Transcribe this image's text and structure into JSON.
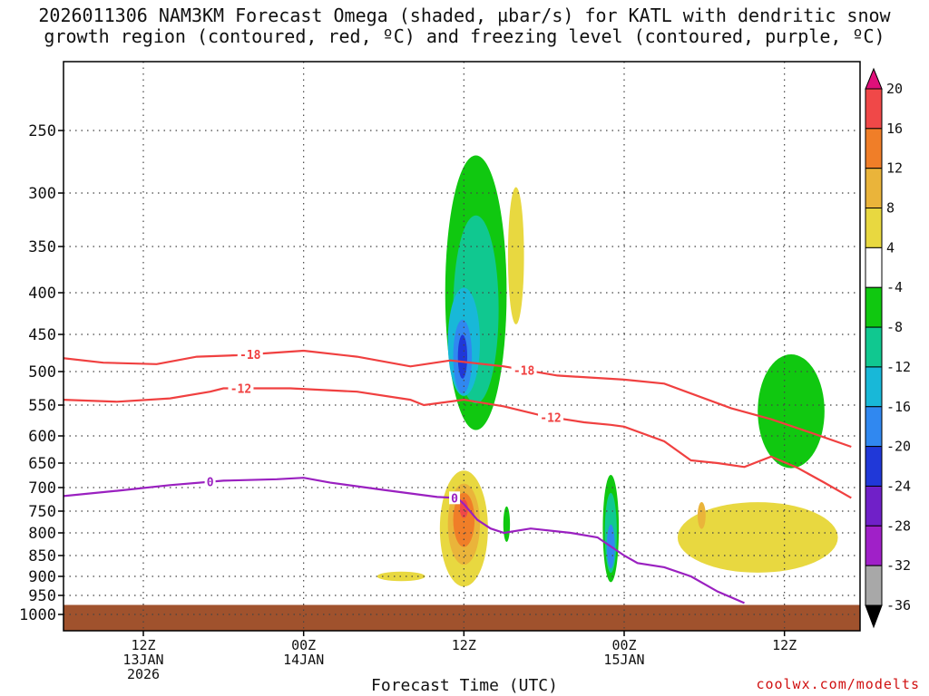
{
  "title_line1": "2026011306 NAM3KM Forecast Omega (shaded, µbar/s) for KATL with dendritic snow",
  "title_line2": "growth region (contoured, red, ºC) and freezing level (contoured, purple, ºC)",
  "xlabel": "Forecast Time (UTC)",
  "credit": "coolwx.com/modelts",
  "chart_data": {
    "type": "heatmap",
    "title": "2026011306 NAM3KM Forecast Omega (shaded, µbar/s) for KATL with dendritic snow growth region (contoured, red, ºC) and freezing level (contoured, purple, ºC)",
    "xlabel": "Forecast Time (UTC)",
    "ylabel": "",
    "x_unit": "forecast hours from 2026-01-13 06Z",
    "xlim": [
      0,
      59
    ],
    "y_levels": [
      250,
      300,
      350,
      400,
      450,
      500,
      550,
      600,
      650,
      700,
      750,
      800,
      850,
      900,
      950,
      1000
    ],
    "y_tick_labels": [
      "250",
      "300",
      "350",
      "400",
      "450",
      "500",
      "550",
      "600",
      "650",
      "700",
      "750",
      "800",
      "850",
      "900",
      "950",
      "1000"
    ],
    "x_ticks": [
      {
        "hour": 6,
        "lines": [
          "12Z",
          "13JAN",
          "2026"
        ]
      },
      {
        "hour": 18,
        "lines": [
          "00Z",
          "14JAN"
        ]
      },
      {
        "hour": 30,
        "lines": [
          "12Z"
        ]
      },
      {
        "hour": 42,
        "lines": [
          "00Z",
          "15JAN"
        ]
      },
      {
        "hour": 54,
        "lines": [
          "12Z"
        ]
      }
    ],
    "grid": true,
    "colorbar": {
      "labels": [
        "20",
        "16",
        "12",
        "8",
        "4",
        "-4",
        "-8",
        "-12",
        "-16",
        "-20",
        "-24",
        "-28",
        "-32",
        "-36"
      ],
      "colors": [
        "#e0107a",
        "#f04848",
        "#f07e28",
        "#eab43a",
        "#e8d840",
        "#ffffff",
        "#10c810",
        "#10c890",
        "#18b8d8",
        "#3088f0",
        "#2038d8",
        "#7020c8",
        "#a020c8",
        "#a8a8a8",
        "#000000"
      ]
    },
    "contours": [
      {
        "name": "-18",
        "color": "#f04040",
        "points": [
          [
            0,
            482
          ],
          [
            3,
            488
          ],
          [
            7,
            490
          ],
          [
            10,
            480
          ],
          [
            13,
            478
          ],
          [
            18,
            472
          ],
          [
            22,
            480
          ],
          [
            26,
            493
          ],
          [
            29,
            485
          ],
          [
            33,
            493
          ],
          [
            37,
            506
          ],
          [
            42,
            512
          ],
          [
            45,
            518
          ],
          [
            50,
            555
          ],
          [
            53,
            573
          ],
          [
            56,
            595
          ],
          [
            59,
            620
          ]
        ],
        "labels": [
          [
            14,
            "-18"
          ],
          [
            34.5,
            "-18"
          ]
        ]
      },
      {
        "name": "-12",
        "color": "#f04040",
        "points": [
          [
            0,
            542
          ],
          [
            4,
            545
          ],
          [
            8,
            540
          ],
          [
            11,
            530
          ],
          [
            12,
            525
          ],
          [
            17,
            525
          ],
          [
            22,
            530
          ],
          [
            26,
            542
          ],
          [
            27,
            550
          ],
          [
            30,
            542
          ],
          [
            33,
            552
          ],
          [
            36,
            568
          ],
          [
            39,
            578
          ],
          [
            41,
            582
          ],
          [
            42,
            585
          ],
          [
            45,
            610
          ],
          [
            47,
            645
          ],
          [
            49,
            650
          ],
          [
            51,
            658
          ],
          [
            53,
            638
          ],
          [
            55,
            660
          ],
          [
            57,
            690
          ],
          [
            59,
            722
          ]
        ],
        "labels": [
          [
            13.3,
            "-12"
          ],
          [
            36.5,
            "-12"
          ]
        ]
      },
      {
        "name": "0",
        "color": "#9a20c0",
        "points": [
          [
            0,
            718
          ],
          [
            4,
            707
          ],
          [
            8,
            695
          ],
          [
            12,
            686
          ],
          [
            16,
            683
          ],
          [
            18,
            680
          ],
          [
            20,
            690
          ],
          [
            24,
            705
          ],
          [
            28,
            720
          ],
          [
            29.5,
            722
          ],
          [
            30,
            735
          ],
          [
            31,
            770
          ],
          [
            32,
            790
          ],
          [
            33,
            800
          ],
          [
            35,
            790
          ],
          [
            38,
            800
          ],
          [
            40,
            810
          ],
          [
            42,
            850
          ],
          [
            43,
            868
          ],
          [
            45,
            878
          ],
          [
            47,
            900
          ],
          [
            49,
            940
          ],
          [
            51,
            970
          ]
        ],
        "labels": [
          [
            11,
            "0"
          ],
          [
            29.3,
            "0"
          ]
        ]
      }
    ],
    "shaded_regions": [
      {
        "range": "-8 to -4",
        "color": "#10c810",
        "ellipse": [
          30.9,
          400,
          2.3,
          150
        ]
      },
      {
        "range": "-12 to -8",
        "color": "#10c890",
        "ellipse": [
          30.9,
          420,
          1.7,
          110
        ]
      },
      {
        "range": "-16 to -12",
        "color": "#18b8d8",
        "ellipse": [
          30,
          460,
          1.2,
          70
        ]
      },
      {
        "range": "-20 to -16",
        "color": "#3088f0",
        "ellipse": [
          29.9,
          480,
          0.7,
          50
        ]
      },
      {
        "range": "-24 to -20",
        "color": "#2038d8",
        "ellipse": [
          29.9,
          480,
          0.35,
          30
        ]
      },
      {
        "range": "4 to 8",
        "color": "#e8d840",
        "ellipse": [
          30,
          790,
          1.8,
          130
        ]
      },
      {
        "range": "8 to 12",
        "color": "#eab43a",
        "ellipse": [
          30,
          780,
          1.2,
          90
        ]
      },
      {
        "range": "12 to 16",
        "color": "#f07e28",
        "ellipse": [
          30,
          770,
          0.8,
          60
        ]
      },
      {
        "range": "16 to 20",
        "color": "#f04848",
        "ellipse": [
          30,
          745,
          0.3,
          20
        ]
      },
      {
        "range": "4 to 8",
        "color": "#e8d840",
        "ellipse": [
          33.9,
          360,
          0.6,
          70
        ]
      },
      {
        "range": "-8 to -4",
        "color": "#10c810",
        "ellipse": [
          41,
          790,
          0.6,
          120
        ]
      },
      {
        "range": "-12 to -8",
        "color": "#10c890",
        "ellipse": [
          41,
          800,
          0.45,
          90
        ]
      },
      {
        "range": "-20 to -16",
        "color": "#3088f0",
        "ellipse": [
          41,
          830,
          0.3,
          50
        ]
      },
      {
        "range": "4 to 8",
        "color": "#e8d840",
        "ellipse": [
          52,
          810,
          6,
          80
        ]
      },
      {
        "range": "8 to 12",
        "color": "#eab43a",
        "ellipse": [
          47.8,
          760,
          0.3,
          30
        ]
      },
      {
        "range": "-8 to -4",
        "color": "#10c810",
        "ellipse": [
          54.5,
          560,
          2.5,
          90
        ]
      },
      {
        "range": "4 to 8",
        "color": "#e8d840",
        "ellipse": [
          25.3,
          900,
          1.8,
          12
        ]
      },
      {
        "range": "-8 to -4",
        "color": "#10c810",
        "ellipse": [
          33.2,
          780,
          0.25,
          40
        ]
      }
    ],
    "terrain_color": "#a0522d",
    "surface_pressure": 975
  }
}
